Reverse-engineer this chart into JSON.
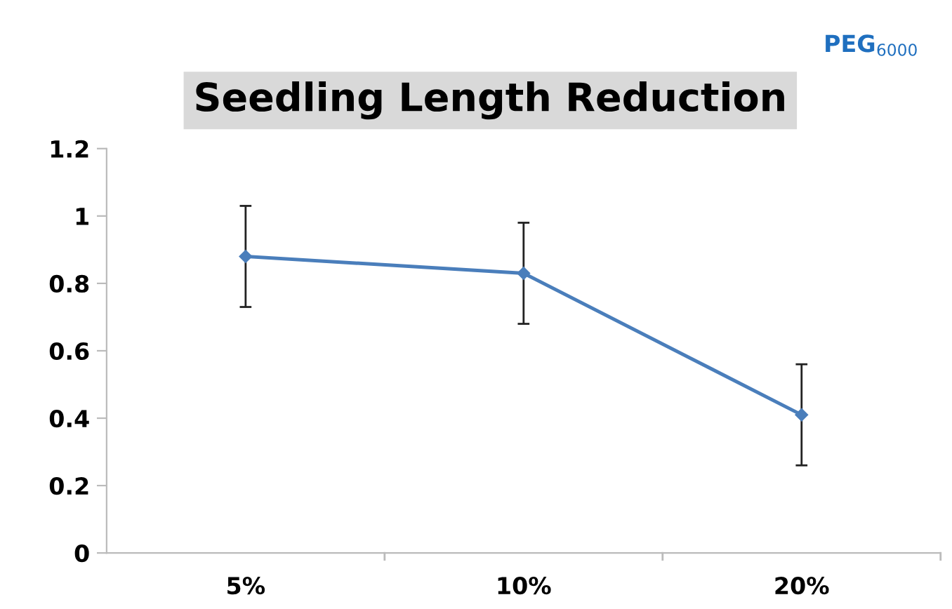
{
  "chart_data": {
    "type": "line",
    "title": "Seedling Length Reduction",
    "annotations": [
      "PEG$_{6000}$"
    ],
    "categories": [
      "5%",
      "10%",
      "20%"
    ],
    "series": [
      {
        "color": "#4a7ebb",
        "values": [
          0.88,
          0.83,
          0.41
        ],
        "errors": [
          0.15,
          0.15,
          0.15
        ]
      }
    ],
    "ylim": [
      0,
      1.2
    ],
    "yticks": [
      0,
      0.2,
      0.4,
      0.6,
      0.8,
      1,
      1.2
    ],
    "grid": false,
    "legend": false,
    "marker": "diamond",
    "line_style": "solid"
  }
}
